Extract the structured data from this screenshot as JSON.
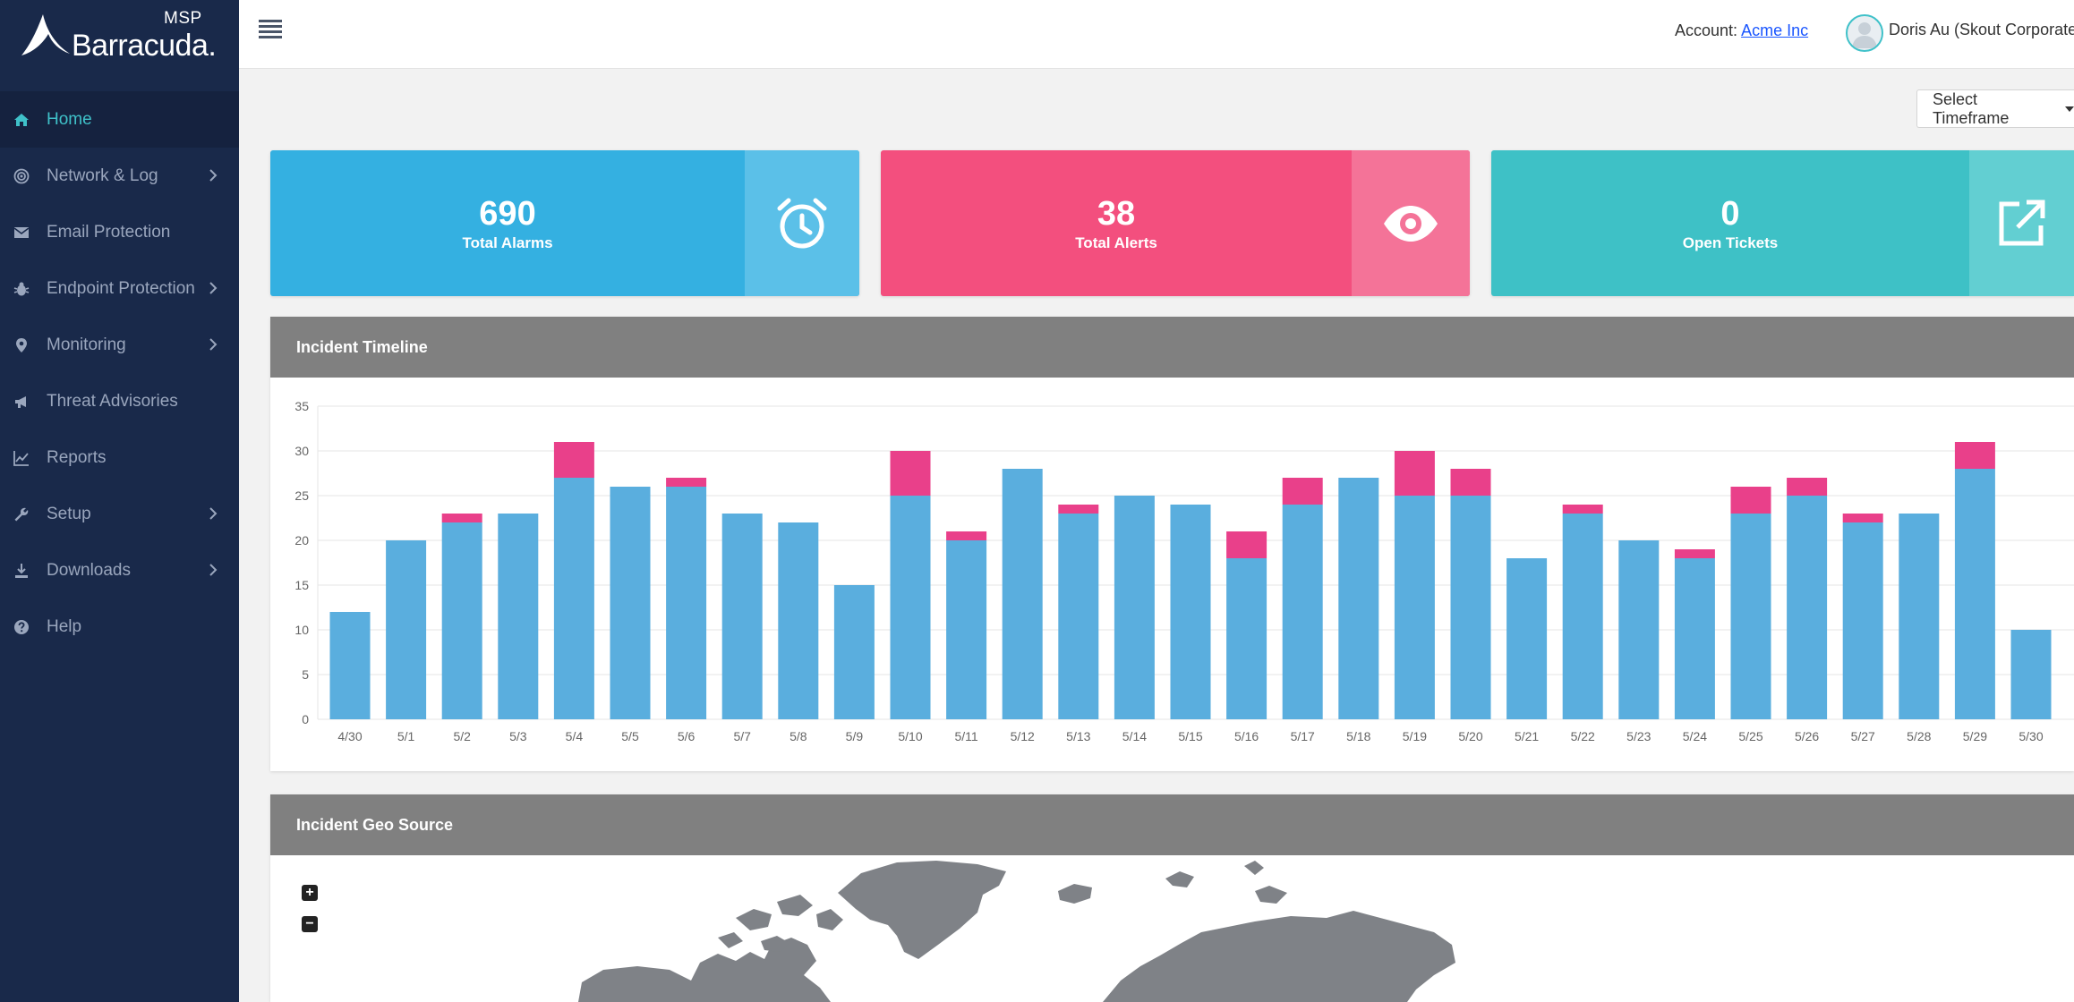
{
  "brand": {
    "msp": "MSP",
    "name": "Barracuda."
  },
  "sidebar": {
    "items": [
      {
        "label": "Home",
        "icon": "home-icon",
        "active": true,
        "chevron": false
      },
      {
        "label": "Network & Log",
        "icon": "radar-icon",
        "active": false,
        "chevron": true
      },
      {
        "label": "Email Protection",
        "icon": "envelope-icon",
        "active": false,
        "chevron": false
      },
      {
        "label": "Endpoint Protection",
        "icon": "bug-icon",
        "active": false,
        "chevron": true
      },
      {
        "label": "Monitoring",
        "icon": "map-pin-icon",
        "active": false,
        "chevron": true
      },
      {
        "label": "Threat Advisories",
        "icon": "megaphone-icon",
        "active": false,
        "chevron": false
      },
      {
        "label": "Reports",
        "icon": "line-chart-icon",
        "active": false,
        "chevron": false
      },
      {
        "label": "Setup",
        "icon": "wrench-icon",
        "active": false,
        "chevron": true
      },
      {
        "label": "Downloads",
        "icon": "download-icon",
        "active": false,
        "chevron": true
      },
      {
        "label": "Help",
        "icon": "question-icon",
        "active": false,
        "chevron": false
      }
    ]
  },
  "header": {
    "account_label": "Account: ",
    "account_name": "Acme Inc",
    "user_name": "Doris Au (Skout Corporate)"
  },
  "timeframe": {
    "label": "Select Timeframe"
  },
  "cards": [
    {
      "value": "690",
      "label": "Total Alarms",
      "icon": "alarm-clock-icon",
      "color": "#34b0e1",
      "side_color": "#5bc0e8"
    },
    {
      "value": "38",
      "label": "Total Alerts",
      "icon": "eye-icon",
      "color": "#f34f7e",
      "side_color": "#f47398"
    },
    {
      "value": "0",
      "label": "Open Tickets",
      "icon": "external-link-icon",
      "color": "#3ec1c6",
      "side_color": "#62cfd2"
    }
  ],
  "timeline": {
    "title": "Incident Timeline",
    "chart_data": {
      "type": "bar",
      "stacked": true,
      "categories": [
        "4/30",
        "5/1",
        "5/2",
        "5/3",
        "5/4",
        "5/5",
        "5/6",
        "5/7",
        "5/8",
        "5/9",
        "5/10",
        "5/11",
        "5/12",
        "5/13",
        "5/14",
        "5/15",
        "5/16",
        "5/17",
        "5/18",
        "5/19",
        "5/20",
        "5/21",
        "5/22",
        "5/23",
        "5/24",
        "5/25",
        "5/26",
        "5/27",
        "5/28",
        "5/29",
        "5/30"
      ],
      "series": [
        {
          "values": [
            12,
            20,
            22,
            23,
            27,
            26,
            26,
            23,
            22,
            15,
            25,
            20,
            28,
            23,
            25,
            24,
            18,
            24,
            27,
            25,
            25,
            18,
            23,
            20,
            18,
            23,
            25,
            22,
            23,
            28,
            10
          ],
          "color": "#5aaede"
        },
        {
          "values": [
            0,
            0,
            1,
            0,
            4,
            0,
            1,
            0,
            0,
            0,
            5,
            1,
            0,
            1,
            0,
            0,
            3,
            3,
            0,
            5,
            3,
            0,
            1,
            0,
            1,
            3,
            2,
            1,
            0,
            3,
            0
          ],
          "color": "#e9408a"
        }
      ],
      "yticks": [
        "0",
        "5",
        "10",
        "15",
        "20",
        "25",
        "30",
        "35"
      ],
      "ylim": [
        0,
        35
      ],
      "grid": true
    }
  },
  "geo": {
    "title": "Incident Geo Source",
    "zoom_in": "+",
    "zoom_out": "−"
  }
}
